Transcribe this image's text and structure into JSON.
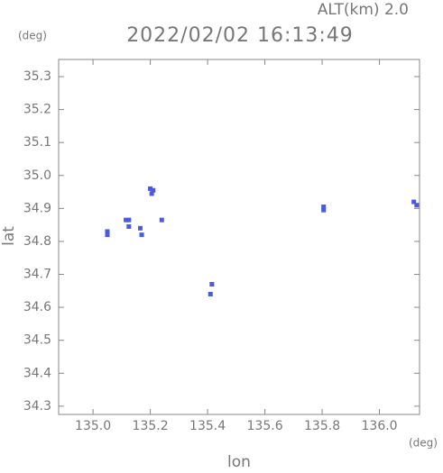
{
  "chart_data": {
    "type": "scatter",
    "title": "2022/02/02 16:13:49",
    "subtitle": "ALT(km) 2.0",
    "y_unit": "(deg)",
    "x_unit": "(deg)",
    "xlabel": "lon",
    "ylabel": "lat",
    "color": "#4a5ae0",
    "x": [
      135.05,
      135.05,
      135.125,
      135.125,
      135.115,
      135.17,
      135.165,
      135.2,
      135.205,
      135.21,
      135.24,
      135.415,
      135.41,
      135.805,
      135.805,
      136.12,
      136.13
    ],
    "y": [
      34.83,
      34.82,
      34.845,
      34.865,
      34.865,
      34.82,
      34.84,
      34.96,
      34.945,
      34.955,
      34.865,
      34.67,
      34.64,
      34.895,
      34.905,
      34.92,
      34.91
    ],
    "xlim": [
      134.88,
      136.14
    ],
    "ylim": [
      34.275,
      35.352
    ],
    "xticks": [
      {
        "value": 135,
        "label": "135.0"
      },
      135.2,
      135.4,
      135.6,
      135.8,
      {
        "value": 136,
        "label": "136.0"
      }
    ],
    "yticks": [
      34.3,
      34.4,
      34.5,
      34.6,
      34.7,
      34.8,
      34.9,
      {
        "value": 35,
        "label": "35.0"
      },
      35.1,
      35.2,
      35.3
    ]
  }
}
